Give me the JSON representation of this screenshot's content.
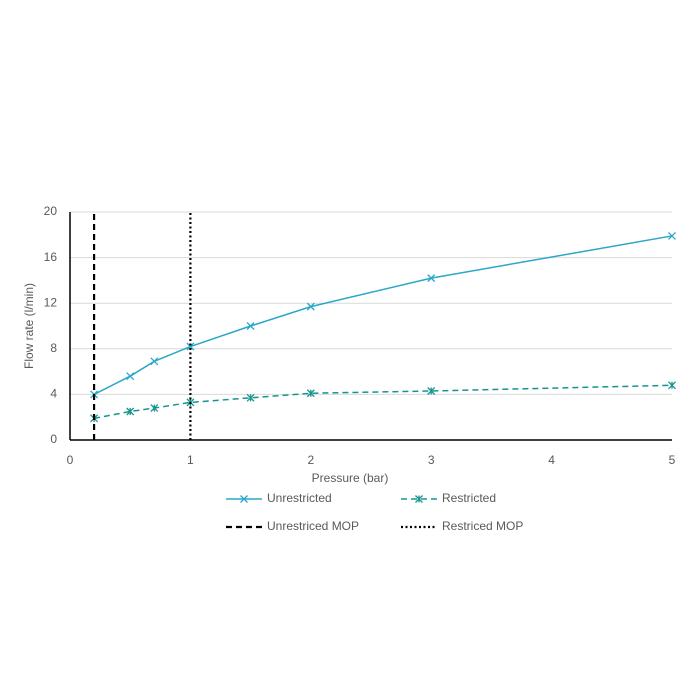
{
  "chart_data": {
    "type": "line",
    "x_label": "Pressure (bar)",
    "y_label": "Flow rate (l/min)",
    "xlim": [
      0,
      5
    ],
    "xticks": [
      0,
      1,
      2,
      3,
      4,
      5
    ],
    "ylim": [
      0,
      20
    ],
    "yticks": [
      0,
      4,
      8,
      12,
      16,
      20
    ],
    "grid": true,
    "legend": "bottom",
    "series": [
      {
        "name": "Unrestricted",
        "color": "#2aa7c9",
        "dash": "solid",
        "marker": "x",
        "x": [
          0.2,
          0.5,
          0.7,
          1,
          1.5,
          2,
          3,
          5
        ],
        "values": [
          4.0,
          5.6,
          6.9,
          8.2,
          10.0,
          11.7,
          14.2,
          17.9
        ]
      },
      {
        "name": "Restricted",
        "color": "#16958f",
        "dash": "dashed",
        "marker": "star",
        "x": [
          0.2,
          0.5,
          0.7,
          1,
          1.5,
          2,
          3,
          5
        ],
        "values": [
          1.9,
          2.5,
          2.8,
          3.3,
          3.7,
          4.1,
          4.3,
          4.8
        ]
      },
      {
        "name": "Unrestriced MOP",
        "color": "#000000",
        "dash": "dashed",
        "x": [
          0.2,
          0.2
        ],
        "values": [
          0,
          20
        ]
      },
      {
        "name": "Restriced MOP",
        "color": "#000000",
        "dash": "dotted",
        "x": [
          1,
          1
        ],
        "values": [
          0,
          20
        ]
      }
    ]
  }
}
